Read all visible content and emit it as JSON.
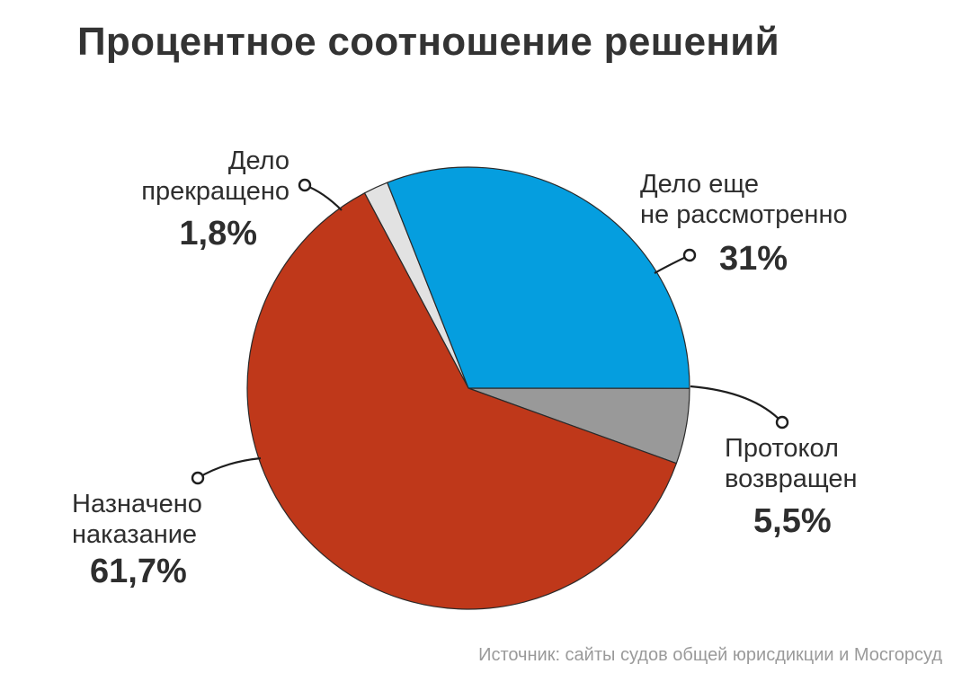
{
  "chart_data": {
    "type": "pie",
    "title": "Процентное соотношение решений",
    "source": "Источник: сайты судов общей юрисдикции и Мосгорсуд",
    "start_angle_deg": -28,
    "direction": "clockwise",
    "slices": [
      {
        "name_lines": [
          "Дело прекращено"
        ],
        "value": 1.8,
        "value_label": "1,8%",
        "color": "#e2e2e2"
      },
      {
        "name_lines": [
          "Дело еще",
          "не рассмотренно"
        ],
        "value": 31,
        "value_label": "31%",
        "color": "#059edf"
      },
      {
        "name_lines": [
          "Протокол",
          "возвращен"
        ],
        "value": 5.5,
        "value_label": "5,5%",
        "color": "#999999"
      },
      {
        "name_lines": [
          "Назначено",
          "наказание"
        ],
        "value": 61.7,
        "value_label": "61,7%",
        "color": "#bf381a"
      }
    ]
  }
}
